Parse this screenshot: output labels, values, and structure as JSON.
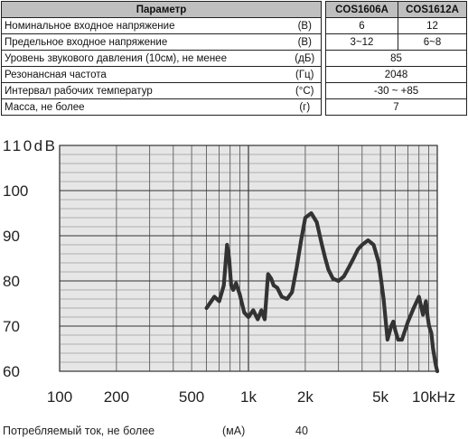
{
  "table": {
    "headers": [
      "Параметр",
      "COS1606A",
      "COS1612A"
    ],
    "rows": [
      {
        "name": "Номинальное входное напряжение",
        "unit": "(В)",
        "a": "6",
        "b": "12"
      },
      {
        "name": "Предельное входное напряжение",
        "unit": "(В)",
        "a": "3~12",
        "b": "6~8"
      },
      {
        "name": "Уровень звукового давления (10см), не менее",
        "unit": "(дБ)",
        "merged": "85"
      },
      {
        "name": "Резонансная частота",
        "unit": "(Гц)",
        "merged": "2048"
      },
      {
        "name": "Интервал рабочих температур",
        "unit": "(°C)",
        "merged": "-30 ~ +85"
      },
      {
        "name": "Масса, не более",
        "unit": "(г)",
        "merged": "7"
      }
    ]
  },
  "chart_data": {
    "type": "line",
    "x_scale": "log",
    "xlim": [
      100,
      10000
    ],
    "ylim": [
      60,
      110
    ],
    "x_ticks": [
      100,
      200,
      500,
      1000,
      2000,
      5000,
      10000
    ],
    "x_tick_labels": [
      "100",
      "200",
      "500",
      "1k",
      "2k",
      "5k",
      "10kHz"
    ],
    "y_ticks": [
      60,
      70,
      80,
      90,
      100,
      110
    ],
    "y_tick_labels": [
      "60",
      "70",
      "80",
      "90",
      "100",
      "110dB"
    ],
    "grid": true,
    "series": [
      {
        "color": "#333333",
        "x": [
          600,
          660,
          700,
          740,
          770,
          790,
          810,
          830,
          860,
          900,
          950,
          1000,
          1060,
          1120,
          1170,
          1220,
          1270,
          1320,
          1360,
          1420,
          1500,
          1600,
          1700,
          1800,
          1900,
          2000,
          2150,
          2300,
          2450,
          2550,
          2650,
          2800,
          3000,
          3200,
          3400,
          3600,
          3800,
          4000,
          4300,
          4600,
          4900,
          5200,
          5450,
          5700,
          5850,
          6000,
          6200,
          6500,
          7000,
          7500,
          8000,
          8400,
          8700,
          8900,
          9050,
          9300,
          9500,
          9800,
          10000
        ],
        "y": [
          74,
          76.5,
          75.5,
          79,
          88,
          85,
          79,
          78,
          79.5,
          77,
          73,
          72,
          73.5,
          71.5,
          73.5,
          71.5,
          81.5,
          80.5,
          79,
          78.5,
          76.5,
          76,
          77.5,
          83,
          89,
          94,
          95,
          93,
          88,
          85,
          82.5,
          80.5,
          80,
          81,
          83,
          85,
          87,
          88,
          89,
          88,
          84,
          76,
          67,
          70,
          71,
          69,
          67,
          67,
          71,
          74,
          76.5,
          72.5,
          75.5,
          72,
          70,
          68.5,
          65,
          61.5,
          60
        ]
      }
    ]
  },
  "footer": {
    "label": "Потребляемый ток, не более",
    "unit": "(мА)",
    "value": "40"
  }
}
